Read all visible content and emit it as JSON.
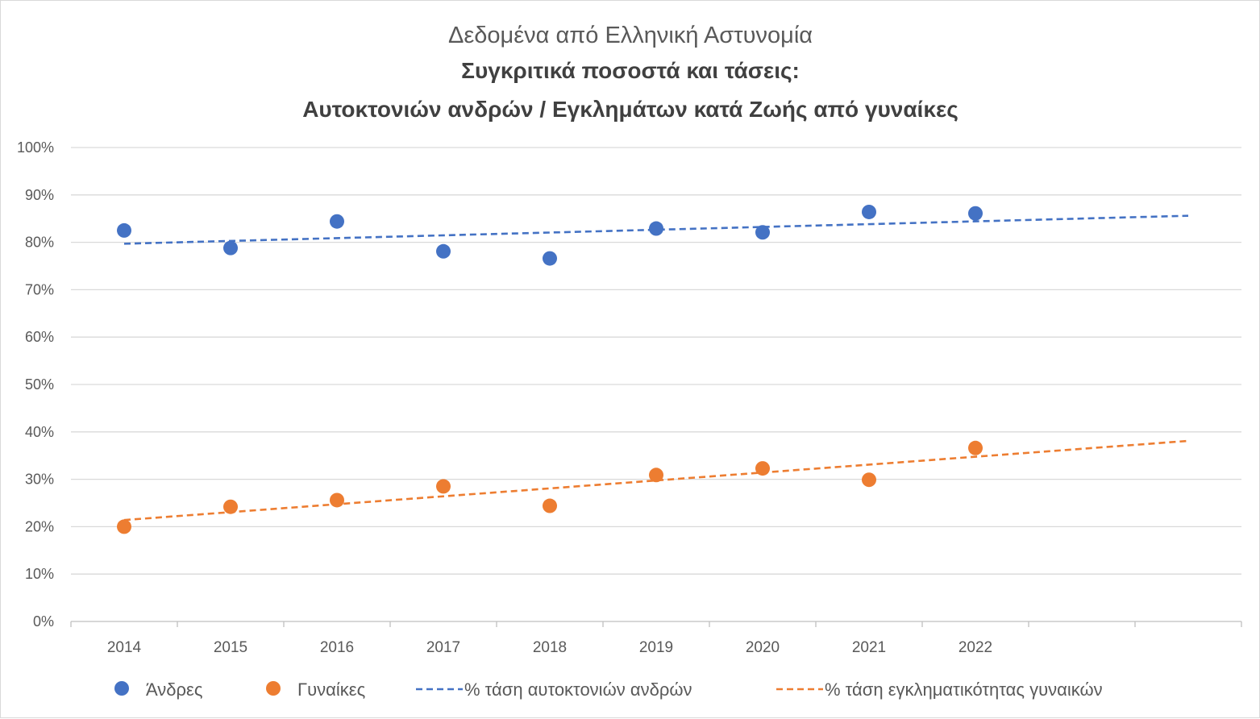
{
  "chart_data": {
    "type": "scatter",
    "title_lines": [
      "Δεδομένα από Ελληνική Αστυνομία",
      "Συγκριτικά ποσοστά και τάσεις:",
      "Αυτοκτονιών ανδρών / Εγκλημάτων κατά Ζωής από γυναίκες"
    ],
    "categories": [
      "2014",
      "2015",
      "2016",
      "2017",
      "2018",
      "2019",
      "2020",
      "2021",
      "2022"
    ],
    "category_slots": 11,
    "y_ticks": [
      "0%",
      "10%",
      "20%",
      "30%",
      "40%",
      "50%",
      "60%",
      "70%",
      "80%",
      "90%",
      "100%"
    ],
    "ylim": [
      0,
      100
    ],
    "y_unit": "%",
    "grid": true,
    "legend_position": "bottom",
    "series": [
      {
        "name": "Άνδρες",
        "color": "#4472C4",
        "values": [
          82.5,
          78.8,
          84.4,
          78.1,
          76.6,
          82.9,
          82.1,
          86.4,
          86.1
        ]
      },
      {
        "name": "Γυναίκες",
        "color": "#ED7D31",
        "values": [
          20.0,
          24.2,
          25.6,
          28.5,
          24.4,
          30.9,
          32.3,
          29.9,
          36.6
        ]
      }
    ],
    "trendlines": [
      {
        "name": "% τάση αυτοκτονιών ανδρών",
        "color": "#4472C4",
        "style": "dashed",
        "start": [
          1,
          79.7
        ],
        "end": [
          11,
          85.6
        ]
      },
      {
        "name": "% τάση εγκληματικότητας γυναικών",
        "color": "#ED7D31",
        "style": "dashed",
        "start": [
          1,
          21.4
        ],
        "end": [
          11,
          38.1
        ]
      }
    ]
  }
}
